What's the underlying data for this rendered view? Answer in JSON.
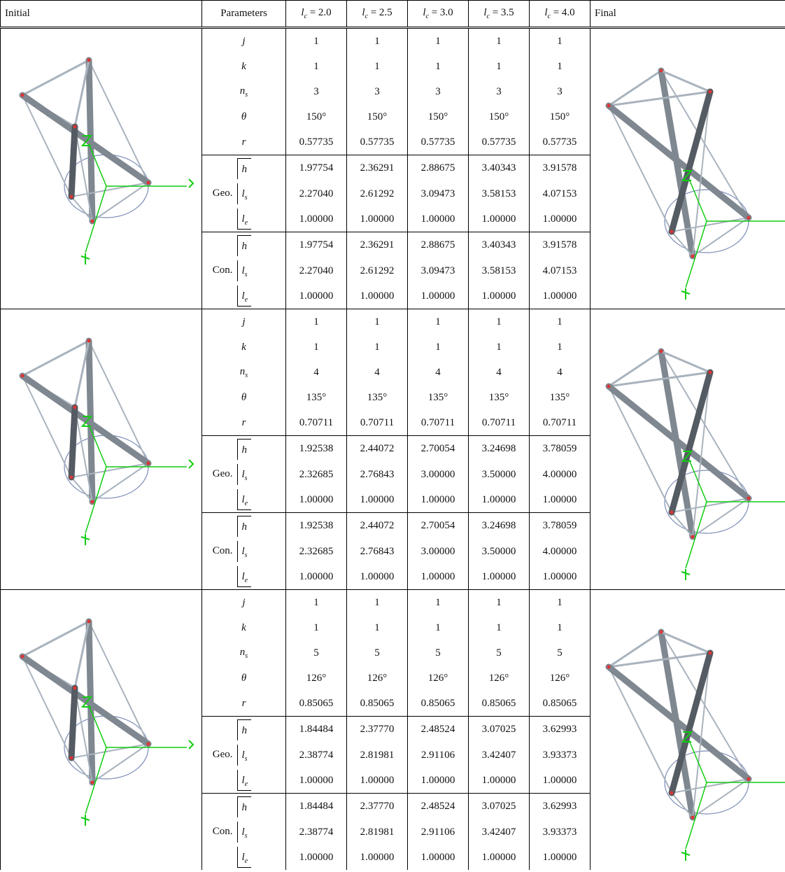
{
  "header": {
    "initial": "Initial",
    "parameters": "Parameters",
    "columns": [
      {
        "symbol": "l",
        "subscript": "c",
        "equals": "= 2.0"
      },
      {
        "symbol": "l",
        "subscript": "c",
        "equals": "= 2.5"
      },
      {
        "symbol": "l",
        "subscript": "c",
        "equals": "= 3.0"
      },
      {
        "symbol": "l",
        "subscript": "c",
        "equals": "= 3.5"
      },
      {
        "symbol": "l",
        "subscript": "c",
        "equals": "= 4.0"
      }
    ],
    "final": "Final"
  },
  "blocks": [
    {
      "rows": [
        {
          "param": {
            "symbol": "j"
          },
          "values": [
            "1",
            "1",
            "1",
            "1",
            "1"
          ]
        },
        {
          "param": {
            "symbol": "k"
          },
          "values": [
            "1",
            "1",
            "1",
            "1",
            "1"
          ]
        },
        {
          "param": {
            "symbol": "n",
            "subscript": "s"
          },
          "values": [
            "3",
            "3",
            "3",
            "3",
            "3"
          ]
        },
        {
          "param": {
            "symbol": "θ"
          },
          "values": [
            "150°",
            "150°",
            "150°",
            "150°",
            "150°"
          ]
        },
        {
          "param": {
            "symbol": "r"
          },
          "values": [
            "0.57735",
            "0.57735",
            "0.57735",
            "0.57735",
            "0.57735"
          ]
        }
      ],
      "groups": [
        {
          "label": "Geo.",
          "rows": [
            {
              "param": {
                "symbol": "h"
              },
              "values": [
                "1.97754",
                "2.36291",
                "2.88675",
                "3.40343",
                "3.91578"
              ]
            },
            {
              "param": {
                "symbol": "l",
                "subscript": "s"
              },
              "values": [
                "2.27040",
                "2.61292",
                "3.09473",
                "3.58153",
                "4.07153"
              ]
            },
            {
              "param": {
                "symbol": "l",
                "subscript": "e"
              },
              "values": [
                "1.00000",
                "1.00000",
                "1.00000",
                "1.00000",
                "1.00000"
              ]
            }
          ]
        },
        {
          "label": "Con.",
          "rows": [
            {
              "param": {
                "symbol": "h"
              },
              "values": [
                "1.97754",
                "2.36291",
                "2.88675",
                "3.40343",
                "3.91578"
              ]
            },
            {
              "param": {
                "symbol": "l",
                "subscript": "s"
              },
              "values": [
                "2.27040",
                "2.61292",
                "3.09473",
                "3.58153",
                "4.07153"
              ]
            },
            {
              "param": {
                "symbol": "l",
                "subscript": "e"
              },
              "values": [
                "1.00000",
                "1.00000",
                "1.00000",
                "1.00000",
                "1.00000"
              ]
            }
          ]
        }
      ]
    },
    {
      "rows": [
        {
          "param": {
            "symbol": "j"
          },
          "values": [
            "1",
            "1",
            "1",
            "1",
            "1"
          ]
        },
        {
          "param": {
            "symbol": "k"
          },
          "values": [
            "1",
            "1",
            "1",
            "1",
            "1"
          ]
        },
        {
          "param": {
            "symbol": "n",
            "subscript": "s"
          },
          "values": [
            "4",
            "4",
            "4",
            "4",
            "4"
          ]
        },
        {
          "param": {
            "symbol": "θ"
          },
          "values": [
            "135°",
            "135°",
            "135°",
            "135°",
            "135°"
          ]
        },
        {
          "param": {
            "symbol": "r"
          },
          "values": [
            "0.70711",
            "0.70711",
            "0.70711",
            "0.70711",
            "0.70711"
          ]
        }
      ],
      "groups": [
        {
          "label": "Geo.",
          "rows": [
            {
              "param": {
                "symbol": "h"
              },
              "values": [
                "1.92538",
                "2.44072",
                "2.70054",
                "3.24698",
                "3.78059"
              ]
            },
            {
              "param": {
                "symbol": "l",
                "subscript": "s"
              },
              "values": [
                "2.32685",
                "2.76843",
                "3.00000",
                "3.50000",
                "4.00000"
              ]
            },
            {
              "param": {
                "symbol": "l",
                "subscript": "e"
              },
              "values": [
                "1.00000",
                "1.00000",
                "1.00000",
                "1.00000",
                "1.00000"
              ]
            }
          ]
        },
        {
          "label": "Con.",
          "rows": [
            {
              "param": {
                "symbol": "h"
              },
              "values": [
                "1.92538",
                "2.44072",
                "2.70054",
                "3.24698",
                "3.78059"
              ]
            },
            {
              "param": {
                "symbol": "l",
                "subscript": "s"
              },
              "values": [
                "2.32685",
                "2.76843",
                "3.00000",
                "3.50000",
                "4.00000"
              ]
            },
            {
              "param": {
                "symbol": "l",
                "subscript": "e"
              },
              "values": [
                "1.00000",
                "1.00000",
                "1.00000",
                "1.00000",
                "1.00000"
              ]
            }
          ]
        }
      ]
    },
    {
      "rows": [
        {
          "param": {
            "symbol": "j"
          },
          "values": [
            "1",
            "1",
            "1",
            "1",
            "1"
          ]
        },
        {
          "param": {
            "symbol": "k"
          },
          "values": [
            "1",
            "1",
            "1",
            "1",
            "1"
          ]
        },
        {
          "param": {
            "symbol": "n",
            "subscript": "s"
          },
          "values": [
            "5",
            "5",
            "5",
            "5",
            "5"
          ]
        },
        {
          "param": {
            "symbol": "θ"
          },
          "values": [
            "126°",
            "126°",
            "126°",
            "126°",
            "126°"
          ]
        },
        {
          "param": {
            "symbol": "r"
          },
          "values": [
            "0.85065",
            "0.85065",
            "0.85065",
            "0.85065",
            "0.85065"
          ]
        }
      ],
      "groups": [
        {
          "label": "Geo.",
          "rows": [
            {
              "param": {
                "symbol": "h"
              },
              "values": [
                "1.84484",
                "2.37770",
                "2.48524",
                "3.07025",
                "3.62993"
              ]
            },
            {
              "param": {
                "symbol": "l",
                "subscript": "s"
              },
              "values": [
                "2.38774",
                "2.81981",
                "2.91106",
                "3.42407",
                "3.93373"
              ]
            },
            {
              "param": {
                "symbol": "l",
                "subscript": "e"
              },
              "values": [
                "1.00000",
                "1.00000",
                "1.00000",
                "1.00000",
                "1.00000"
              ]
            }
          ]
        },
        {
          "label": "Con.",
          "rows": [
            {
              "param": {
                "symbol": "h"
              },
              "values": [
                "1.84484",
                "2.37770",
                "2.48524",
                "3.07025",
                "3.62993"
              ]
            },
            {
              "param": {
                "symbol": "l",
                "subscript": "s"
              },
              "values": [
                "2.38774",
                "2.81981",
                "2.91106",
                "3.42407",
                "3.93373"
              ]
            },
            {
              "param": {
                "symbol": "l",
                "subscript": "e"
              },
              "values": [
                "1.00000",
                "1.00000",
                "1.00000",
                "1.00000",
                "1.00000"
              ]
            }
          ]
        }
      ]
    }
  ]
}
